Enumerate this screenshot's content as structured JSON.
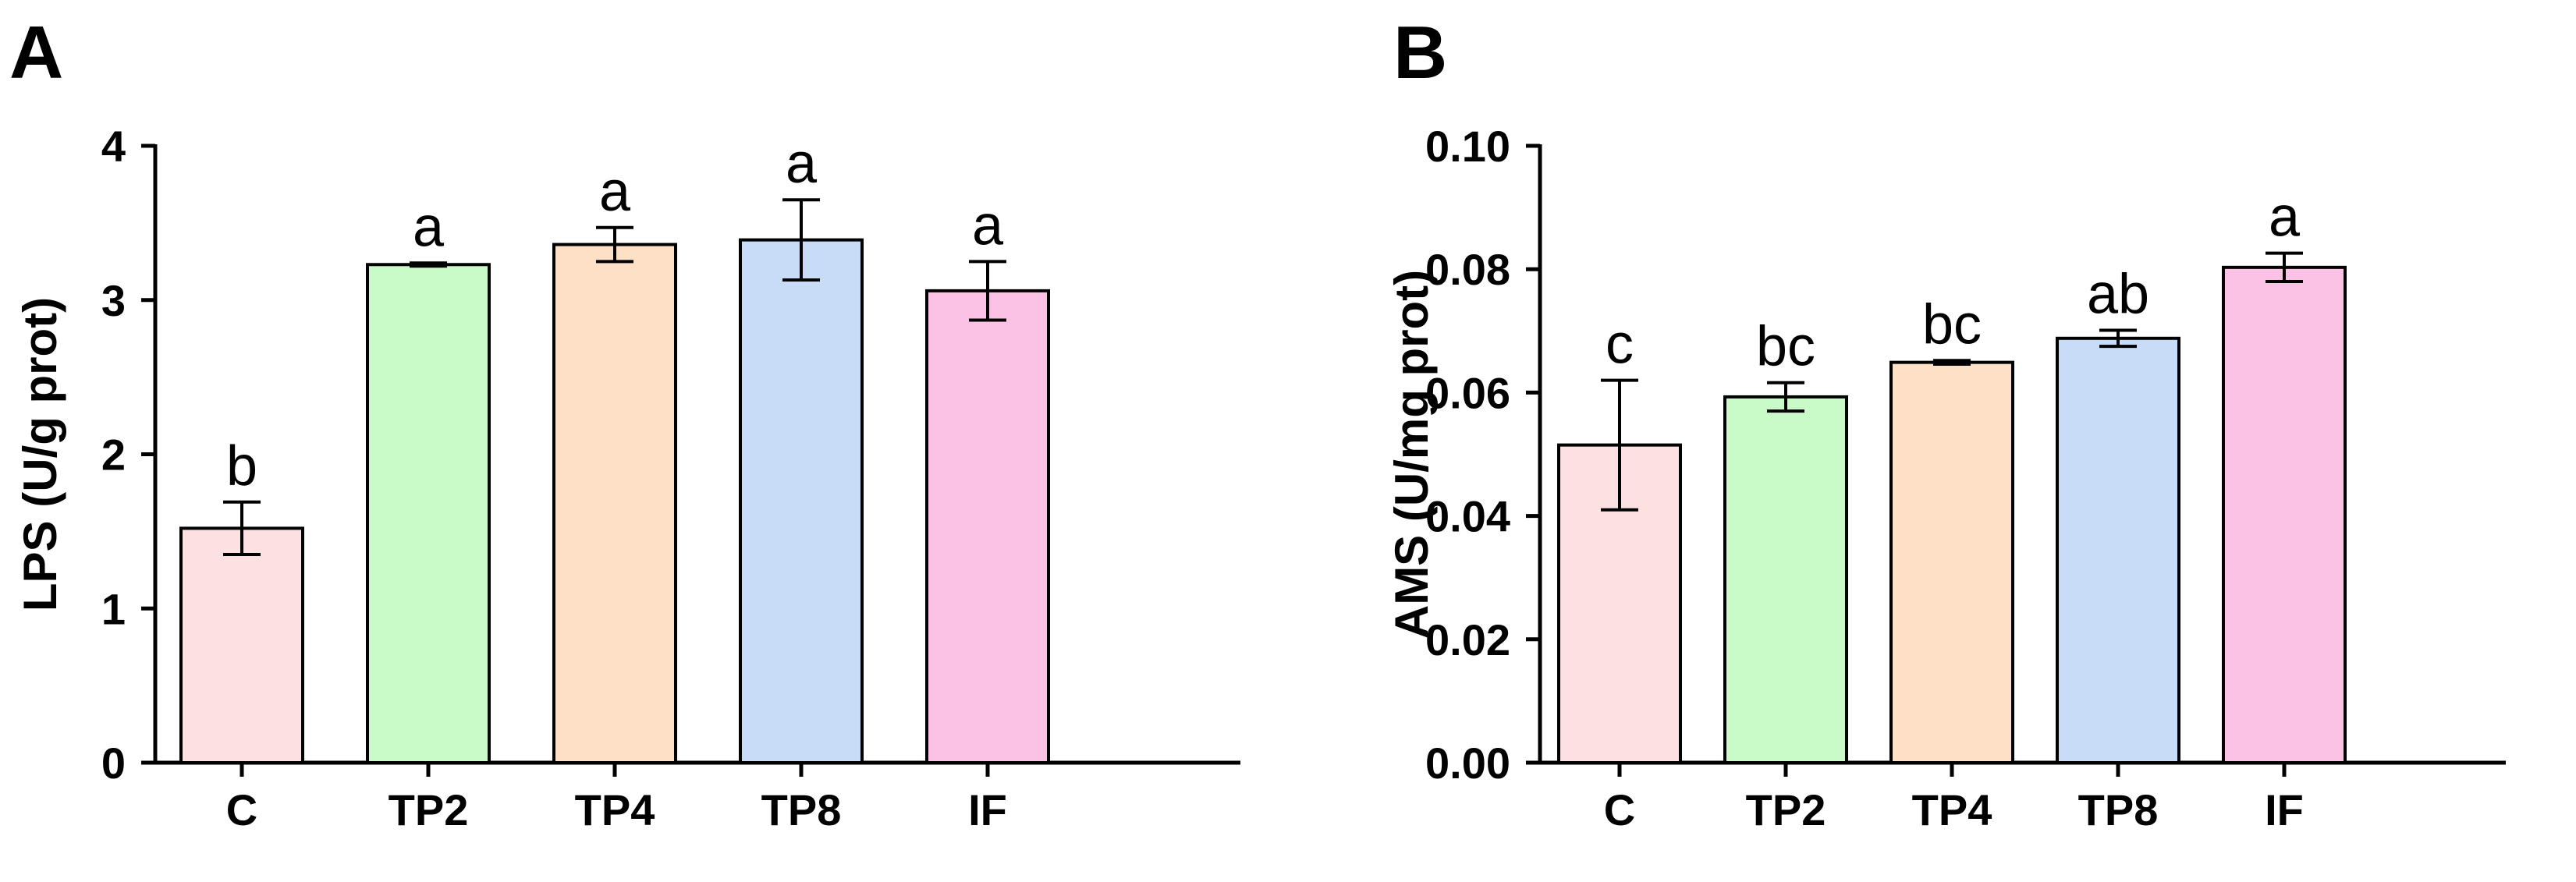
{
  "chart_data": [
    {
      "type": "bar",
      "panel": "A",
      "title": "",
      "xlabel": "",
      "ylabel": "LPS (U/g prot)",
      "ylim": [
        0,
        4
      ],
      "yticks": [
        "0",
        "1",
        "2",
        "3",
        "4"
      ],
      "tick_values": [
        0,
        1,
        2,
        3,
        4
      ],
      "categories": [
        "C",
        "TP2",
        "TP4",
        "TP8",
        "IF"
      ],
      "values": [
        1.52,
        3.23,
        3.36,
        3.39,
        3.06
      ],
      "errors": [
        0.17,
        0.01,
        0.11,
        0.26,
        0.19
      ],
      "labels": [
        "b",
        "a",
        "a",
        "a",
        "a"
      ],
      "colors": [
        "#fde0e1",
        "#c9fbc8",
        "#fde0c5",
        "#c8dcf7",
        "#fcc2e6"
      ]
    },
    {
      "type": "bar",
      "panel": "B",
      "title": "",
      "xlabel": "",
      "ylabel": "AMS (U/mg prot)",
      "ylim": [
        0,
        0.1
      ],
      "yticks": [
        "0.00",
        "0.02",
        "0.04",
        "0.06",
        "0.08",
        "0.10"
      ],
      "tick_values": [
        0,
        0.02,
        0.04,
        0.06,
        0.08,
        0.1
      ],
      "categories": [
        "C",
        "TP2",
        "TP4",
        "TP8",
        "IF"
      ],
      "values": [
        0.0515,
        0.0593,
        0.0649,
        0.0688,
        0.0803
      ],
      "errors": [
        0.0105,
        0.0023,
        0.0003,
        0.0013,
        0.0023
      ],
      "labels": [
        "c",
        "bc",
        "bc",
        "ab",
        "a"
      ],
      "colors": [
        "#fde0e1",
        "#c9fbc8",
        "#fde0c5",
        "#c8dcf7",
        "#fcc2e6"
      ]
    }
  ]
}
